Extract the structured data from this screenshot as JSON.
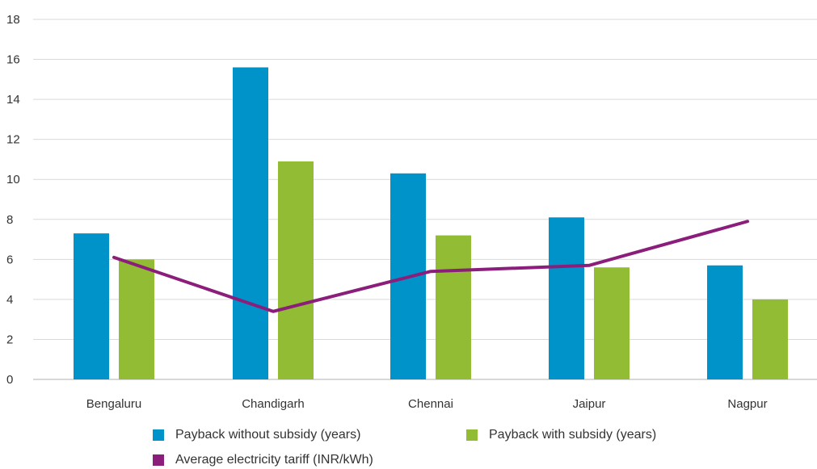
{
  "chart_data": {
    "type": "bar",
    "categories": [
      "Bengaluru",
      "Chandigarh",
      "Chennai",
      "Jaipur",
      "Nagpur"
    ],
    "series": [
      {
        "name": "Payback without subsidy (years)",
        "type": "bar",
        "color": "#0093C9",
        "values": [
          7.3,
          15.6,
          10.3,
          8.1,
          5.7
        ]
      },
      {
        "name": "Payback with subsidy (years)",
        "type": "bar",
        "color": "#92BC34",
        "values": [
          6.0,
          10.9,
          7.2,
          5.6,
          4.0
        ]
      },
      {
        "name": "Average electricity tariff (INR/kWh)",
        "type": "line",
        "color": "#8B1E7A",
        "values": [
          6.1,
          3.4,
          5.4,
          5.7,
          7.9
        ]
      }
    ],
    "ylim": [
      0,
      18
    ],
    "yticks": [
      "0",
      "2",
      "4",
      "6",
      "8",
      "10",
      "12",
      "14",
      "16",
      "18"
    ],
    "grid": true,
    "legend_position": "bottom"
  }
}
